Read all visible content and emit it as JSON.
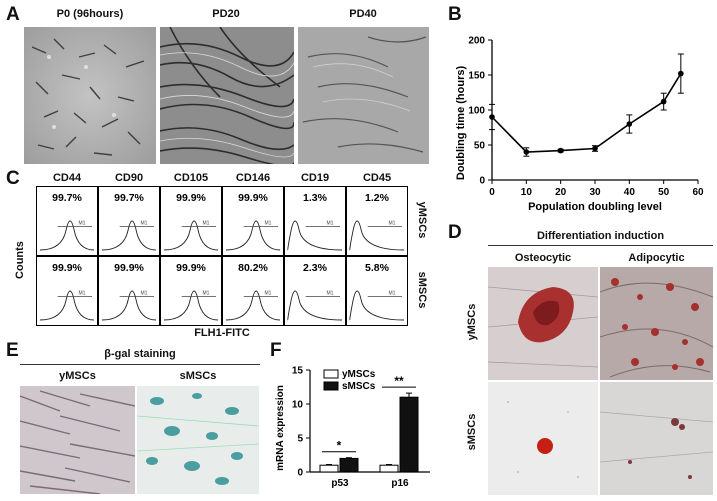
{
  "panels": {
    "A": {
      "letter": "A",
      "images": [
        {
          "label": "P0 (96hours)"
        },
        {
          "label": "PD20"
        },
        {
          "label": "PD40"
        }
      ]
    },
    "B": {
      "letter": "B",
      "chart_data": {
        "type": "line",
        "title": "",
        "xlabel": "Population doubling level",
        "ylabel": "Doubling time (hours)",
        "xlim": [
          0,
          60
        ],
        "ylim": [
          0,
          200
        ],
        "xticks": [
          "0",
          "10",
          "20",
          "30",
          "40",
          "50",
          "60"
        ],
        "yticks": [
          "0",
          "50",
          "100",
          "150",
          "200"
        ],
        "x": [
          0,
          10,
          20,
          30,
          40,
          50,
          55
        ],
        "y": [
          90,
          40,
          42,
          45,
          80,
          112,
          152
        ],
        "yerr": [
          18,
          6,
          2,
          4,
          13,
          12,
          28
        ]
      }
    },
    "C": {
      "letter": "C",
      "markers": [
        "CD44",
        "CD90",
        "CD105",
        "CD146",
        "CD19",
        "CD45"
      ],
      "rows": [
        {
          "name": "yMSCs",
          "values": [
            "99.7%",
            "99.7%",
            "99.9%",
            "99.9%",
            "1.3%",
            "1.2%"
          ]
        },
        {
          "name": "sMSCs",
          "values": [
            "99.9%",
            "99.9%",
            "99.9%",
            "80.2%",
            "2.3%",
            "5.8%"
          ]
        }
      ],
      "ylabel": "Counts",
      "xlabel": "FLH1-FITC",
      "gate_label": "M1"
    },
    "D": {
      "letter": "D",
      "title": "Differentiation induction",
      "columns": [
        "Osteocytic",
        "Adipocytic"
      ],
      "rows": [
        "yMSCs",
        "sMSCs"
      ]
    },
    "E": {
      "letter": "E",
      "title": "β-gal staining",
      "columns": [
        "yMSCs",
        "sMSCs"
      ]
    },
    "F": {
      "letter": "F",
      "chart_data": {
        "type": "bar",
        "categories": [
          "p53",
          "p16"
        ],
        "series": [
          {
            "name": "yMSCs",
            "values": [
              1.0,
              1.0
            ],
            "err": [
              0.1,
              0.1
            ],
            "color": "#ffffff"
          },
          {
            "name": "sMSCs",
            "values": [
              2.0,
              11.0
            ],
            "err": [
              0.1,
              0.6
            ],
            "color": "#111111"
          }
        ],
        "ylabel": "mRNA expression",
        "ylim": [
          0,
          15
        ],
        "yticks": [
          "0",
          "5",
          "10",
          "15"
        ],
        "significance": [
          "*",
          "**"
        ]
      }
    }
  }
}
